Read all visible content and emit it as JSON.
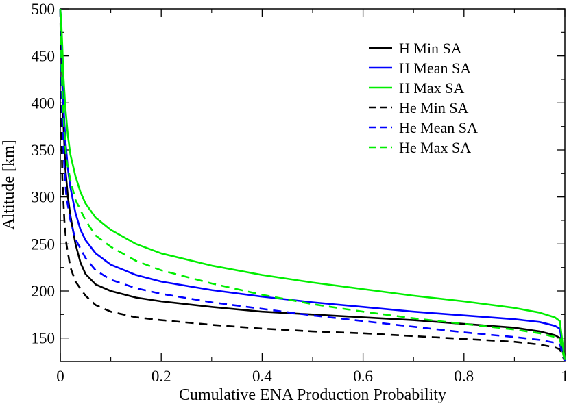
{
  "chart_data": {
    "type": "line",
    "title": "",
    "xlabel": "Cumulative ENA Production Probability",
    "ylabel": "Altitude [km]",
    "xlim": [
      0,
      1
    ],
    "ylim": [
      125,
      500
    ],
    "x_ticks": [
      0,
      0.2,
      0.4,
      0.6,
      0.8,
      1
    ],
    "x_tick_labels": [
      "0",
      "0.2",
      "0.4",
      "0.6",
      "0.8",
      "1"
    ],
    "x_minor_ticks": [
      0.1,
      0.3,
      0.5,
      0.7,
      0.9
    ],
    "y_ticks": [
      150,
      200,
      250,
      300,
      350,
      400,
      450,
      500
    ],
    "y_tick_labels": [
      "150",
      "200",
      "250",
      "300",
      "350",
      "400",
      "450",
      "500"
    ],
    "y_minor_ticks": [
      175,
      225,
      275,
      325,
      375,
      425,
      475
    ],
    "grid": false,
    "legend_position": "top-right",
    "series": [
      {
        "name": "H Min SA",
        "color": "#000000",
        "dash": "solid",
        "points": [
          [
            0.0,
            500
          ],
          [
            0.002,
            470
          ],
          [
            0.004,
            420
          ],
          [
            0.006,
            380
          ],
          [
            0.01,
            330
          ],
          [
            0.015,
            300
          ],
          [
            0.02,
            280
          ],
          [
            0.03,
            250
          ],
          [
            0.04,
            230
          ],
          [
            0.05,
            218
          ],
          [
            0.07,
            207
          ],
          [
            0.1,
            200
          ],
          [
            0.15,
            193
          ],
          [
            0.2,
            189
          ],
          [
            0.3,
            183
          ],
          [
            0.4,
            178
          ],
          [
            0.5,
            175
          ],
          [
            0.6,
            172
          ],
          [
            0.7,
            169
          ],
          [
            0.8,
            165
          ],
          [
            0.9,
            161
          ],
          [
            0.95,
            157
          ],
          [
            0.98,
            153
          ],
          [
            0.99,
            150
          ],
          [
            1.0,
            125
          ]
        ]
      },
      {
        "name": "H Mean SA",
        "color": "#0000ff",
        "dash": "solid",
        "points": [
          [
            0.0,
            500
          ],
          [
            0.002,
            480
          ],
          [
            0.004,
            440
          ],
          [
            0.006,
            400
          ],
          [
            0.01,
            360
          ],
          [
            0.015,
            330
          ],
          [
            0.02,
            310
          ],
          [
            0.03,
            283
          ],
          [
            0.04,
            265
          ],
          [
            0.05,
            254
          ],
          [
            0.07,
            240
          ],
          [
            0.1,
            228
          ],
          [
            0.15,
            217
          ],
          [
            0.2,
            210
          ],
          [
            0.3,
            201
          ],
          [
            0.4,
            194
          ],
          [
            0.5,
            188
          ],
          [
            0.6,
            183
          ],
          [
            0.7,
            178
          ],
          [
            0.8,
            174
          ],
          [
            0.9,
            170
          ],
          [
            0.95,
            167
          ],
          [
            0.98,
            163
          ],
          [
            0.99,
            160
          ],
          [
            1.0,
            125
          ]
        ]
      },
      {
        "name": "H Max SA",
        "color": "#00ee00",
        "dash": "solid",
        "points": [
          [
            0.0,
            500
          ],
          [
            0.002,
            485
          ],
          [
            0.004,
            460
          ],
          [
            0.006,
            430
          ],
          [
            0.01,
            395
          ],
          [
            0.015,
            365
          ],
          [
            0.02,
            345
          ],
          [
            0.03,
            322
          ],
          [
            0.04,
            305
          ],
          [
            0.05,
            293
          ],
          [
            0.07,
            278
          ],
          [
            0.1,
            265
          ],
          [
            0.15,
            250
          ],
          [
            0.2,
            240
          ],
          [
            0.3,
            227
          ],
          [
            0.4,
            217
          ],
          [
            0.5,
            209
          ],
          [
            0.6,
            202
          ],
          [
            0.7,
            195
          ],
          [
            0.8,
            189
          ],
          [
            0.9,
            182
          ],
          [
            0.95,
            177
          ],
          [
            0.98,
            172
          ],
          [
            0.99,
            168
          ],
          [
            1.0,
            125
          ]
        ]
      },
      {
        "name": "He Min SA",
        "color": "#000000",
        "dash": "dashed",
        "points": [
          [
            0.0,
            500
          ],
          [
            0.001,
            450
          ],
          [
            0.002,
            380
          ],
          [
            0.004,
            320
          ],
          [
            0.008,
            275
          ],
          [
            0.012,
            250
          ],
          [
            0.02,
            225
          ],
          [
            0.03,
            210
          ],
          [
            0.05,
            195
          ],
          [
            0.07,
            185
          ],
          [
            0.1,
            178
          ],
          [
            0.15,
            172
          ],
          [
            0.2,
            169
          ],
          [
            0.3,
            164
          ],
          [
            0.4,
            160
          ],
          [
            0.5,
            157
          ],
          [
            0.6,
            155
          ],
          [
            0.7,
            152
          ],
          [
            0.8,
            149
          ],
          [
            0.9,
            146
          ],
          [
            0.95,
            143
          ],
          [
            0.98,
            140
          ],
          [
            0.99,
            138
          ],
          [
            1.0,
            125
          ]
        ]
      },
      {
        "name": "He Mean SA",
        "color": "#0000ff",
        "dash": "dashed",
        "points": [
          [
            0.0,
            500
          ],
          [
            0.001,
            470
          ],
          [
            0.002,
            430
          ],
          [
            0.004,
            380
          ],
          [
            0.008,
            330
          ],
          [
            0.012,
            300
          ],
          [
            0.02,
            275
          ],
          [
            0.03,
            255
          ],
          [
            0.05,
            235
          ],
          [
            0.07,
            222
          ],
          [
            0.1,
            212
          ],
          [
            0.15,
            203
          ],
          [
            0.2,
            197
          ],
          [
            0.3,
            188
          ],
          [
            0.4,
            181
          ],
          [
            0.5,
            174
          ],
          [
            0.6,
            168
          ],
          [
            0.7,
            162
          ],
          [
            0.8,
            156
          ],
          [
            0.9,
            151
          ],
          [
            0.95,
            148
          ],
          [
            0.98,
            145
          ],
          [
            0.99,
            143
          ],
          [
            1.0,
            125
          ]
        ]
      },
      {
        "name": "He Max SA",
        "color": "#00ee00",
        "dash": "dashed",
        "points": [
          [
            0.0,
            500
          ],
          [
            0.001,
            480
          ],
          [
            0.002,
            450
          ],
          [
            0.004,
            410
          ],
          [
            0.008,
            370
          ],
          [
            0.012,
            340
          ],
          [
            0.02,
            318
          ],
          [
            0.03,
            297
          ],
          [
            0.05,
            275
          ],
          [
            0.07,
            259
          ],
          [
            0.1,
            247
          ],
          [
            0.15,
            232
          ],
          [
            0.2,
            222
          ],
          [
            0.3,
            208
          ],
          [
            0.4,
            196
          ],
          [
            0.5,
            186
          ],
          [
            0.6,
            178
          ],
          [
            0.7,
            171
          ],
          [
            0.8,
            165
          ],
          [
            0.9,
            159
          ],
          [
            0.95,
            155
          ],
          [
            0.98,
            151
          ],
          [
            0.99,
            149
          ],
          [
            1.0,
            125
          ]
        ]
      }
    ]
  }
}
